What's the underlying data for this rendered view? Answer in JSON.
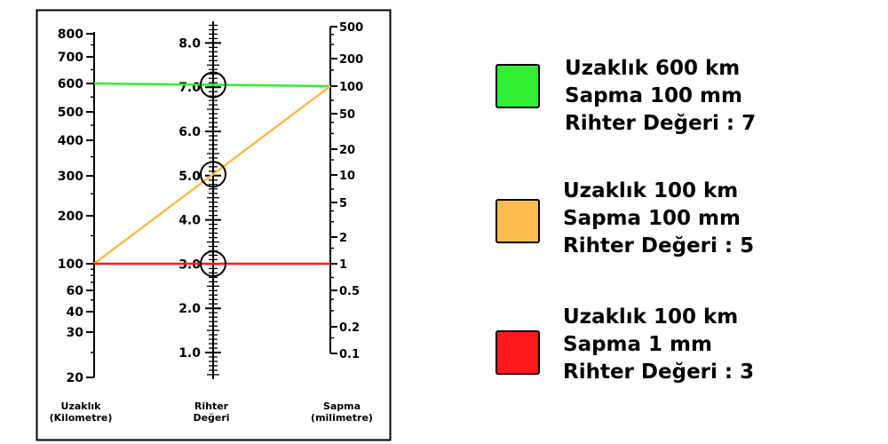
{
  "axes": {
    "distance": {
      "title_line1": "Uzaklık",
      "title_line2": "(Kilometre)",
      "ticks": [
        {
          "value": 800,
          "label": "800"
        },
        {
          "value": 700,
          "label": "700"
        },
        {
          "value": 600,
          "label": "600"
        },
        {
          "value": 500,
          "label": "500"
        },
        {
          "value": 400,
          "label": "400"
        },
        {
          "value": 300,
          "label": "300"
        },
        {
          "value": 200,
          "label": "200"
        },
        {
          "value": 100,
          "label": "100"
        },
        {
          "value": 60,
          "label": "60"
        },
        {
          "value": 40,
          "label": "40"
        },
        {
          "value": 30,
          "label": "30"
        },
        {
          "value": 20,
          "label": "20"
        }
      ]
    },
    "richter": {
      "title_line1": "Rihter",
      "title_line2": "Değeri",
      "ticks": [
        {
          "value": 8.0,
          "label": "8.0"
        },
        {
          "value": 7.0,
          "label": "7.0"
        },
        {
          "value": 6.0,
          "label": "6.0"
        },
        {
          "value": 5.0,
          "label": "5.0"
        },
        {
          "value": 4.0,
          "label": "4.0"
        },
        {
          "value": 3.0,
          "label": "3.0"
        },
        {
          "value": 2.0,
          "label": "2.0"
        },
        {
          "value": 1.0,
          "label": "1.0"
        }
      ]
    },
    "amplitude": {
      "title_line1": "Sapma",
      "title_line2": "(milimetre)",
      "ticks": [
        {
          "value": 500,
          "label": "500"
        },
        {
          "value": 200,
          "label": "200"
        },
        {
          "value": 100,
          "label": "100"
        },
        {
          "value": 50,
          "label": "50"
        },
        {
          "value": 20,
          "label": "20"
        },
        {
          "value": 10,
          "label": "10"
        },
        {
          "value": 5,
          "label": "5"
        },
        {
          "value": 2,
          "label": "2"
        },
        {
          "value": 1,
          "label": "1"
        },
        {
          "value": 0.5,
          "label": "0.5"
        },
        {
          "value": 0.2,
          "label": "0.2"
        },
        {
          "value": 0.1,
          "label": "0.1"
        }
      ]
    }
  },
  "examples": [
    {
      "color": "#33ee33",
      "distance_km": 600,
      "amplitude_mm": 100,
      "richter": 7,
      "line1": "Uzaklık 600 km",
      "line2": "Sapma 100 mm",
      "line3": "Rihter Değeri : 7"
    },
    {
      "color": "#ffbb4d",
      "distance_km": 100,
      "amplitude_mm": 100,
      "richter": 5,
      "line1": "Uzaklık 100 km",
      "line2": "Sapma 100 mm",
      "line3": "Rihter Değeri : 5"
    },
    {
      "color": "#ff1a1a",
      "distance_km": 100,
      "amplitude_mm": 1,
      "richter": 3,
      "line1": "Uzaklık 100 km",
      "line2": "Sapma 1 mm",
      "line3": "Rihter Değeri : 3"
    }
  ]
}
